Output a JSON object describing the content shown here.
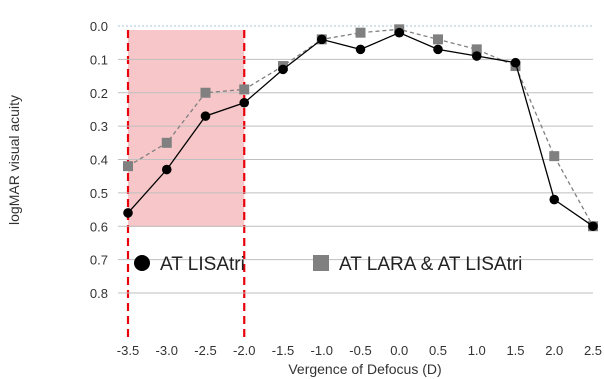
{
  "chart_data": {
    "type": "line",
    "xlabel": "Vergence of Defocus (D)",
    "ylabel": "logMAR visual acuity",
    "xlim": [
      -3.5,
      2.5
    ],
    "ylim": [
      0.8,
      0.0
    ],
    "y_inverted": true,
    "x_ticks": [
      "-3.5",
      "-3.0",
      "-2.5",
      "-2.0",
      "-1.5",
      "-1.0",
      "-0.5",
      "0.0",
      "0.5",
      "1.0",
      "1.5",
      "2.0",
      "2.5"
    ],
    "y_ticks": [
      "0.0",
      "0.1",
      "0.2",
      "0.3",
      "0.4",
      "0.5",
      "0.6",
      "0.7",
      "0.8"
    ],
    "grid": "horizontal",
    "legend_position": "bottom-inside",
    "highlight_region": {
      "x_from": -3.5,
      "x_to": -2.0,
      "color": "#f7c6c8",
      "border_color": "#e8000b"
    },
    "series": [
      {
        "name": "AT LISAtri",
        "marker": "circle",
        "line_style": "solid",
        "color": "#000000",
        "x": [
          -3.5,
          -3.0,
          -2.5,
          -2.0,
          -1.5,
          -1.0,
          -0.5,
          0.0,
          0.5,
          1.0,
          1.5,
          2.0,
          2.5
        ],
        "values": [
          0.56,
          0.43,
          0.27,
          0.23,
          0.13,
          0.04,
          0.07,
          0.02,
          0.07,
          0.09,
          0.11,
          0.52,
          0.6
        ]
      },
      {
        "name": "AT LARA & AT LISAtri",
        "marker": "square",
        "line_style": "dashed",
        "color": "#808080",
        "x": [
          -3.5,
          -3.0,
          -2.5,
          -2.0,
          -1.5,
          -1.0,
          -0.5,
          0.0,
          0.5,
          1.0,
          1.5,
          2.0,
          2.5
        ],
        "values": [
          0.42,
          0.35,
          0.2,
          0.19,
          0.12,
          0.04,
          0.02,
          0.01,
          0.04,
          0.07,
          0.12,
          0.39,
          0.6
        ]
      }
    ]
  }
}
